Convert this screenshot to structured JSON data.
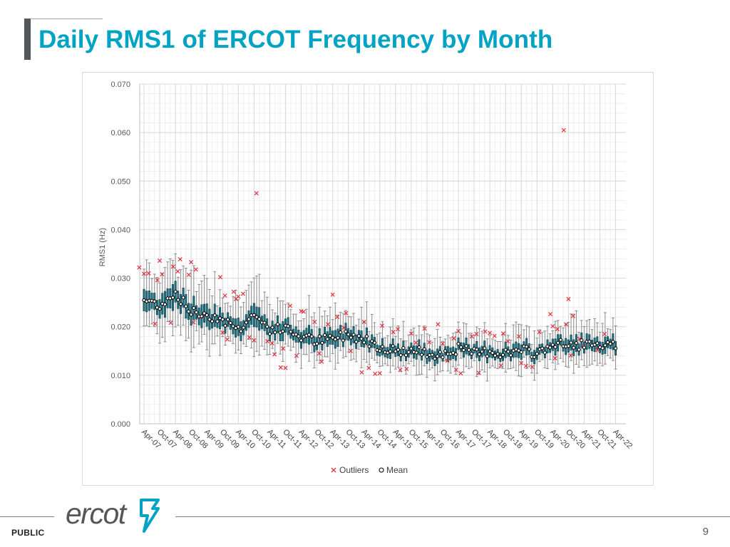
{
  "slide": {
    "title": "Daily RMS1 of ERCOT Frequency by Month",
    "footer_label": "PUBLIC",
    "page_number": "9",
    "logo_text": "ercot"
  },
  "colors": {
    "title": "#00a3c4",
    "box_fill": "#1e7283",
    "outlier": "#e0303e",
    "mean_fill": "#ffffff",
    "mean_stroke": "#000000",
    "grid": "#d9d9d9",
    "logo_gray": "#55565a",
    "logo_teal": "#00a3c4"
  },
  "chart_data": {
    "type": "box",
    "title": "",
    "xlabel": "",
    "ylabel": "RMS1 (Hz)",
    "ylim": [
      0,
      0.07
    ],
    "yticks": [
      "0.000",
      "0.010",
      "0.020",
      "0.030",
      "0.040",
      "0.050",
      "0.060",
      "0.070"
    ],
    "xticks": [
      "Apr-07",
      "Oct-07",
      "Apr-08",
      "Oct-08",
      "Apr-09",
      "Oct-09",
      "Apr-10",
      "Oct-10",
      "Apr-11",
      "Oct-11",
      "Apr-12",
      "Oct-12",
      "Apr-13",
      "Oct-13",
      "Apr-14",
      "Oct-14",
      "Apr-15",
      "Oct-15",
      "Apr-16",
      "Oct-16",
      "Apr-17",
      "Oct-17",
      "Apr-18",
      "Oct-18",
      "Apr-19",
      "Oct-19",
      "Apr-20",
      "Oct-20",
      "Apr-21",
      "Oct-21",
      "Apr-22"
    ],
    "grid": true,
    "legend_position": "bottom",
    "legend": [
      {
        "key": "outliers",
        "label": "Outliers",
        "symbol": "×"
      },
      {
        "key": "mean",
        "label": "Mean",
        "symbol": "◇"
      }
    ],
    "mean_trend": [
      {
        "x": "Apr-07",
        "y": 0.0255
      },
      {
        "x": "Oct-07",
        "y": 0.0245
      },
      {
        "x": "Apr-08",
        "y": 0.027
      },
      {
        "x": "Oct-08",
        "y": 0.023
      },
      {
        "x": "Apr-09",
        "y": 0.0225
      },
      {
        "x": "Oct-09",
        "y": 0.0215
      },
      {
        "x": "Apr-10",
        "y": 0.0195
      },
      {
        "x": "Oct-10",
        "y": 0.0225
      },
      {
        "x": "Apr-11",
        "y": 0.0195
      },
      {
        "x": "Oct-11",
        "y": 0.0195
      },
      {
        "x": "Apr-12",
        "y": 0.018
      },
      {
        "x": "Oct-12",
        "y": 0.017
      },
      {
        "x": "Apr-13",
        "y": 0.0175
      },
      {
        "x": "Oct-13",
        "y": 0.0185
      },
      {
        "x": "Apr-14",
        "y": 0.0175
      },
      {
        "x": "Oct-14",
        "y": 0.016
      },
      {
        "x": "Apr-15",
        "y": 0.015
      },
      {
        "x": "Oct-15",
        "y": 0.015
      },
      {
        "x": "Apr-16",
        "y": 0.0145
      },
      {
        "x": "Oct-16",
        "y": 0.0145
      },
      {
        "x": "Apr-17",
        "y": 0.0155
      },
      {
        "x": "Oct-17",
        "y": 0.0145
      },
      {
        "x": "Apr-18",
        "y": 0.015
      },
      {
        "x": "Oct-18",
        "y": 0.0145
      },
      {
        "x": "Apr-19",
        "y": 0.015
      },
      {
        "x": "Oct-19",
        "y": 0.0145
      },
      {
        "x": "Apr-20",
        "y": 0.0165
      },
      {
        "x": "Oct-20",
        "y": 0.016
      },
      {
        "x": "Apr-21",
        "y": 0.0165
      },
      {
        "x": "Oct-21",
        "y": 0.0155
      },
      {
        "x": "Apr-22",
        "y": 0.016
      }
    ],
    "outliers": [
      {
        "x": "Apr-07",
        "y": 0.0322
      },
      {
        "x": "Apr-07",
        "y": 0.0309
      },
      {
        "x": "Apr-07",
        "y": 0.031
      },
      {
        "x": "Oct-07",
        "y": 0.0296
      },
      {
        "x": "Oct-07",
        "y": 0.0308
      },
      {
        "x": "Oct-07",
        "y": 0.0206
      },
      {
        "x": "Oct-07",
        "y": 0.0336
      },
      {
        "x": "Apr-08",
        "y": 0.0339
      },
      {
        "x": "Apr-08",
        "y": 0.0324
      },
      {
        "x": "Apr-08",
        "y": 0.0314
      },
      {
        "x": "Apr-08",
        "y": 0.0208
      },
      {
        "x": "Oct-08",
        "y": 0.0333
      },
      {
        "x": "Oct-08",
        "y": 0.0318
      },
      {
        "x": "Oct-08",
        "y": 0.0307
      },
      {
        "x": "Oct-08",
        "y": 0.0209
      },
      {
        "x": "Apr-09",
        "y": 0.022
      },
      {
        "x": "Oct-09",
        "y": 0.0188
      },
      {
        "x": "Oct-09",
        "y": 0.0174
      },
      {
        "x": "Oct-09",
        "y": 0.0302
      },
      {
        "x": "Oct-09",
        "y": 0.0264
      },
      {
        "x": "Apr-10",
        "y": 0.0272
      },
      {
        "x": "Apr-10",
        "y": 0.0262
      },
      {
        "x": "Apr-10",
        "y": 0.0268
      },
      {
        "x": "Apr-10",
        "y": 0.0257
      },
      {
        "x": "Oct-10",
        "y": 0.0475
      },
      {
        "x": "Oct-10",
        "y": 0.0178
      },
      {
        "x": "Oct-10",
        "y": 0.0172
      },
      {
        "x": "Apr-11",
        "y": 0.0143
      },
      {
        "x": "Apr-11",
        "y": 0.017
      },
      {
        "x": "Apr-11",
        "y": 0.0166
      },
      {
        "x": "Oct-11",
        "y": 0.0116
      },
      {
        "x": "Oct-11",
        "y": 0.0115
      },
      {
        "x": "Oct-11",
        "y": 0.0243
      },
      {
        "x": "Oct-11",
        "y": 0.0155
      },
      {
        "x": "Apr-12",
        "y": 0.0231
      },
      {
        "x": "Apr-12",
        "y": 0.014
      },
      {
        "x": "Apr-12",
        "y": 0.0232
      },
      {
        "x": "Oct-12",
        "y": 0.0128
      },
      {
        "x": "Oct-12",
        "y": 0.021
      },
      {
        "x": "Oct-12",
        "y": 0.0145
      },
      {
        "x": "Apr-13",
        "y": 0.0205
      },
      {
        "x": "Apr-13",
        "y": 0.0266
      },
      {
        "x": "Apr-13",
        "y": 0.022
      },
      {
        "x": "Oct-13",
        "y": 0.0228
      },
      {
        "x": "Oct-13",
        "y": 0.015
      },
      {
        "x": "Oct-13",
        "y": 0.0198
      },
      {
        "x": "Apr-14",
        "y": 0.021
      },
      {
        "x": "Apr-14",
        "y": 0.0115
      },
      {
        "x": "Apr-14",
        "y": 0.0106
      },
      {
        "x": "Oct-14",
        "y": 0.0202
      },
      {
        "x": "Oct-14",
        "y": 0.0103
      },
      {
        "x": "Oct-14",
        "y": 0.0104
      },
      {
        "x": "Apr-15",
        "y": 0.0111
      },
      {
        "x": "Apr-15",
        "y": 0.0189
      },
      {
        "x": "Apr-15",
        "y": 0.0195
      },
      {
        "x": "Oct-15",
        "y": 0.0113
      },
      {
        "x": "Oct-15",
        "y": 0.0186
      },
      {
        "x": "Oct-15",
        "y": 0.0167
      },
      {
        "x": "Apr-16",
        "y": 0.0196
      },
      {
        "x": "Apr-16",
        "y": 0.0168
      },
      {
        "x": "Oct-16",
        "y": 0.0205
      },
      {
        "x": "Oct-16",
        "y": 0.0165
      },
      {
        "x": "Oct-16",
        "y": 0.013
      },
      {
        "x": "Apr-17",
        "y": 0.0111
      },
      {
        "x": "Apr-17",
        "y": 0.0104
      },
      {
        "x": "Apr-17",
        "y": 0.0176
      },
      {
        "x": "Apr-17",
        "y": 0.0191
      },
      {
        "x": "Oct-17",
        "y": 0.0105
      },
      {
        "x": "Oct-17",
        "y": 0.018
      },
      {
        "x": "Oct-17",
        "y": 0.0185
      },
      {
        "x": "Apr-18",
        "y": 0.019
      },
      {
        "x": "Apr-18",
        "y": 0.0187
      },
      {
        "x": "Apr-18",
        "y": 0.0181
      },
      {
        "x": "Oct-18",
        "y": 0.0186
      },
      {
        "x": "Oct-18",
        "y": 0.017
      },
      {
        "x": "Oct-18",
        "y": 0.012
      },
      {
        "x": "Apr-19",
        "y": 0.0125
      },
      {
        "x": "Apr-19",
        "y": 0.0119
      },
      {
        "x": "Apr-19",
        "y": 0.018
      },
      {
        "x": "Oct-19",
        "y": 0.0189
      },
      {
        "x": "Oct-19",
        "y": 0.0117
      },
      {
        "x": "Apr-20",
        "y": 0.0201
      },
      {
        "x": "Apr-20",
        "y": 0.0195
      },
      {
        "x": "Apr-20",
        "y": 0.0226
      },
      {
        "x": "Apr-20",
        "y": 0.0135
      },
      {
        "x": "Oct-20",
        "y": 0.0605
      },
      {
        "x": "Oct-20",
        "y": 0.0257
      },
      {
        "x": "Oct-20",
        "y": 0.0222
      },
      {
        "x": "Oct-20",
        "y": 0.0205
      },
      {
        "x": "Oct-20",
        "y": 0.0141
      },
      {
        "x": "Apr-21",
        "y": 0.0175
      },
      {
        "x": "Apr-21",
        "y": 0.016
      },
      {
        "x": "Oct-21",
        "y": 0.0185
      },
      {
        "x": "Oct-21",
        "y": 0.0152
      }
    ]
  }
}
